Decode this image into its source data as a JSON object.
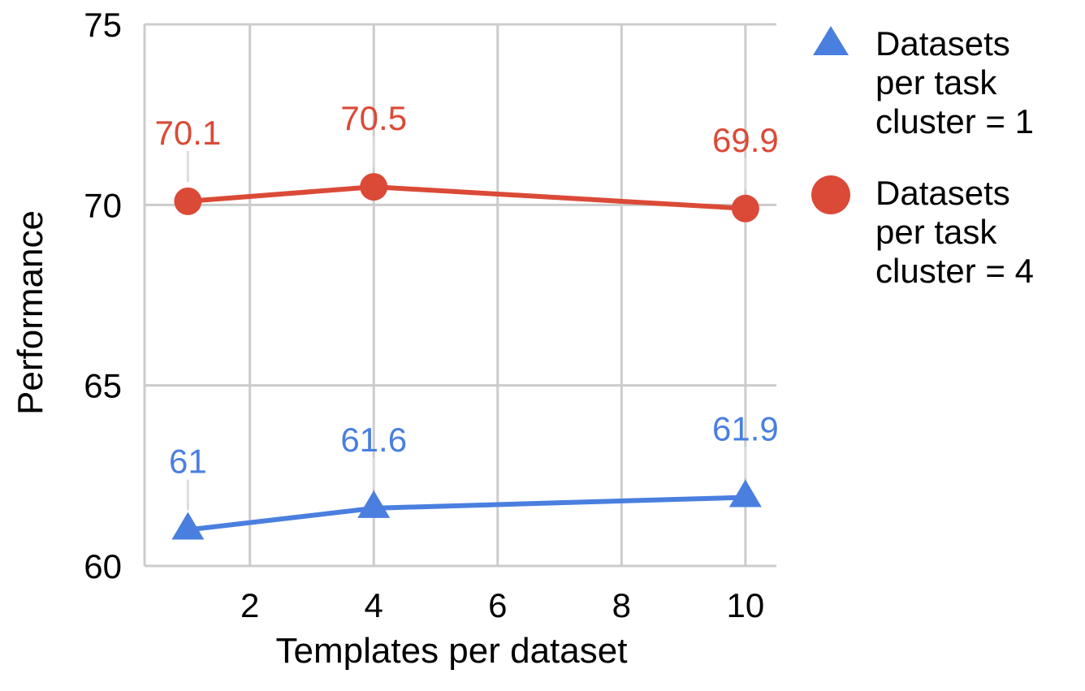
{
  "chart_data": {
    "type": "line",
    "title": "",
    "xlabel": "Templates per dataset",
    "ylabel": "Performance",
    "xlim": [
      0.3,
      10.5
    ],
    "ylim": [
      60,
      75
    ],
    "x_ticks": [
      2,
      4,
      6,
      8,
      10
    ],
    "y_ticks": [
      60,
      65,
      70,
      75
    ],
    "grid": true,
    "legend_position": "right",
    "series": [
      {
        "name": "Datasets per task cluster = 1",
        "marker": "triangle",
        "color": "#4a7fe0",
        "x": [
          1,
          4,
          10
        ],
        "values": [
          61,
          61.6,
          61.9
        ],
        "labels": [
          "61",
          "61.6",
          "61.9"
        ]
      },
      {
        "name": "Datasets per task cluster = 4",
        "marker": "circle",
        "color": "#db4a37",
        "x": [
          1,
          4,
          10
        ],
        "values": [
          70.1,
          70.5,
          69.9
        ],
        "labels": [
          "70.1",
          "70.5",
          "69.9"
        ]
      }
    ]
  },
  "legend": {
    "items": [
      {
        "lines": [
          "Datasets",
          "per task",
          "cluster = 1"
        ]
      },
      {
        "lines": [
          "Datasets",
          "per task",
          "cluster = 4"
        ]
      }
    ]
  }
}
